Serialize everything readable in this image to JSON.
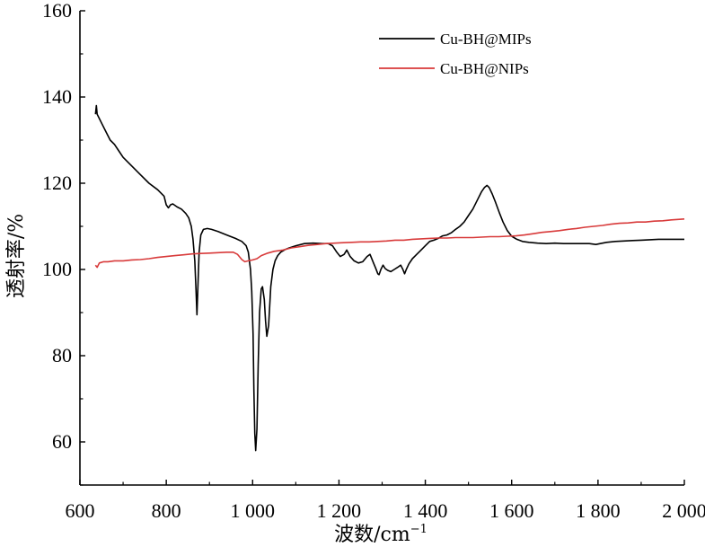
{
  "chart_data": {
    "type": "line",
    "title": "",
    "xlabel": "波数/cm",
    "xlabel_sup": "−1",
    "ylabel": "透射率/%",
    "xlim": [
      600,
      2000
    ],
    "ylim": [
      50,
      160
    ],
    "x_ticks": [
      600,
      800,
      1000,
      1200,
      1400,
      1600,
      1800,
      2000
    ],
    "x_tick_labels": [
      "600",
      "800",
      "1 000",
      "1 200",
      "1 400",
      "1 600",
      "1 800",
      "2 000"
    ],
    "y_ticks": [
      60,
      80,
      100,
      120,
      140,
      160
    ],
    "y_tick_labels": [
      "60",
      "80",
      "100",
      "120",
      "140",
      "160"
    ],
    "legend_position": "top-right",
    "grid": false,
    "series": [
      {
        "name": "Cu-BH@MIPs",
        "color": "#000000",
        "points": [
          [
            636,
            136
          ],
          [
            638,
            138
          ],
          [
            640,
            136
          ],
          [
            645,
            135
          ],
          [
            650,
            134
          ],
          [
            660,
            132
          ],
          [
            670,
            130
          ],
          [
            680,
            129
          ],
          [
            690,
            127.5
          ],
          [
            700,
            126
          ],
          [
            720,
            124
          ],
          [
            740,
            122
          ],
          [
            760,
            120
          ],
          [
            780,
            118.5
          ],
          [
            795,
            117
          ],
          [
            800,
            115
          ],
          [
            805,
            114.3
          ],
          [
            810,
            115
          ],
          [
            815,
            115.2
          ],
          [
            825,
            114.5
          ],
          [
            835,
            114
          ],
          [
            845,
            113
          ],
          [
            852,
            112
          ],
          [
            858,
            110
          ],
          [
            862,
            107
          ],
          [
            866,
            102
          ],
          [
            869,
            95
          ],
          [
            871,
            89.5
          ],
          [
            873,
            95
          ],
          [
            876,
            104
          ],
          [
            880,
            108
          ],
          [
            886,
            109.3
          ],
          [
            895,
            109.5
          ],
          [
            905,
            109.3
          ],
          [
            920,
            108.8
          ],
          [
            940,
            108
          ],
          [
            960,
            107.2
          ],
          [
            975,
            106.5
          ],
          [
            985,
            105.5
          ],
          [
            990,
            104
          ],
          [
            995,
            100
          ],
          [
            998,
            95
          ],
          [
            1001,
            85
          ],
          [
            1003,
            72
          ],
          [
            1005,
            62
          ],
          [
            1007,
            58
          ],
          [
            1010,
            63
          ],
          [
            1013,
            78
          ],
          [
            1016,
            90
          ],
          [
            1020,
            95.5
          ],
          [
            1023,
            96
          ],
          [
            1027,
            93
          ],
          [
            1030,
            88
          ],
          [
            1033,
            84.5
          ],
          [
            1037,
            87
          ],
          [
            1042,
            96
          ],
          [
            1047,
            100
          ],
          [
            1052,
            102
          ],
          [
            1058,
            103.2
          ],
          [
            1065,
            104
          ],
          [
            1075,
            104.6
          ],
          [
            1085,
            105
          ],
          [
            1100,
            105.5
          ],
          [
            1120,
            106
          ],
          [
            1140,
            106.1
          ],
          [
            1160,
            106
          ],
          [
            1175,
            106
          ],
          [
            1185,
            105.5
          ],
          [
            1195,
            104
          ],
          [
            1203,
            103
          ],
          [
            1212,
            103.5
          ],
          [
            1218,
            104.5
          ],
          [
            1226,
            103
          ],
          [
            1235,
            102
          ],
          [
            1245,
            101.5
          ],
          [
            1255,
            101.8
          ],
          [
            1265,
            103
          ],
          [
            1272,
            103.5
          ],
          [
            1280,
            101.5
          ],
          [
            1285,
            100.3
          ],
          [
            1290,
            99
          ],
          [
            1293,
            98.8
          ],
          [
            1297,
            100
          ],
          [
            1302,
            101
          ],
          [
            1307,
            100.2
          ],
          [
            1313,
            99.8
          ],
          [
            1320,
            99.5
          ],
          [
            1328,
            100
          ],
          [
            1336,
            100.5
          ],
          [
            1343,
            101
          ],
          [
            1348,
            100
          ],
          [
            1352,
            99
          ],
          [
            1356,
            100
          ],
          [
            1362,
            101.3
          ],
          [
            1370,
            102.5
          ],
          [
            1380,
            103.5
          ],
          [
            1390,
            104.5
          ],
          [
            1400,
            105.5
          ],
          [
            1410,
            106.5
          ],
          [
            1420,
            106.8
          ],
          [
            1430,
            107.2
          ],
          [
            1440,
            107.8
          ],
          [
            1450,
            108
          ],
          [
            1460,
            108.5
          ],
          [
            1470,
            109.3
          ],
          [
            1480,
            110
          ],
          [
            1490,
            111
          ],
          [
            1500,
            112.5
          ],
          [
            1510,
            114
          ],
          [
            1520,
            116
          ],
          [
            1530,
            118
          ],
          [
            1537,
            119
          ],
          [
            1543,
            119.5
          ],
          [
            1548,
            119
          ],
          [
            1555,
            117.5
          ],
          [
            1563,
            115.5
          ],
          [
            1572,
            113
          ],
          [
            1580,
            111
          ],
          [
            1590,
            109
          ],
          [
            1600,
            107.7
          ],
          [
            1612,
            107
          ],
          [
            1625,
            106.5
          ],
          [
            1640,
            106.3
          ],
          [
            1660,
            106.1
          ],
          [
            1680,
            106
          ],
          [
            1700,
            106.1
          ],
          [
            1720,
            106
          ],
          [
            1740,
            106
          ],
          [
            1760,
            106
          ],
          [
            1780,
            106
          ],
          [
            1795,
            105.8
          ],
          [
            1805,
            106
          ],
          [
            1820,
            106.3
          ],
          [
            1840,
            106.5
          ],
          [
            1860,
            106.6
          ],
          [
            1880,
            106.7
          ],
          [
            1900,
            106.8
          ],
          [
            1920,
            106.9
          ],
          [
            1940,
            107
          ],
          [
            1960,
            107
          ],
          [
            1980,
            107
          ],
          [
            2000,
            107
          ]
        ]
      },
      {
        "name": "Cu-BH@NIPs",
        "color": "#d83a3a",
        "points": [
          [
            636,
            101
          ],
          [
            640,
            100.5
          ],
          [
            645,
            101.5
          ],
          [
            655,
            101.8
          ],
          [
            665,
            101.8
          ],
          [
            680,
            102
          ],
          [
            700,
            102
          ],
          [
            720,
            102.2
          ],
          [
            740,
            102.3
          ],
          [
            760,
            102.5
          ],
          [
            780,
            102.8
          ],
          [
            800,
            103
          ],
          [
            820,
            103.2
          ],
          [
            840,
            103.4
          ],
          [
            860,
            103.6
          ],
          [
            880,
            103.7
          ],
          [
            900,
            103.8
          ],
          [
            920,
            103.9
          ],
          [
            940,
            104
          ],
          [
            955,
            104
          ],
          [
            965,
            103.5
          ],
          [
            975,
            102.3
          ],
          [
            982,
            101.8
          ],
          [
            990,
            102
          ],
          [
            1000,
            102.2
          ],
          [
            1010,
            102.5
          ],
          [
            1020,
            103.2
          ],
          [
            1035,
            103.8
          ],
          [
            1050,
            104.2
          ],
          [
            1070,
            104.5
          ],
          [
            1090,
            105
          ],
          [
            1110,
            105.3
          ],
          [
            1130,
            105.6
          ],
          [
            1150,
            105.8
          ],
          [
            1170,
            106
          ],
          [
            1190,
            106.1
          ],
          [
            1210,
            106.2
          ],
          [
            1230,
            106.3
          ],
          [
            1250,
            106.4
          ],
          [
            1270,
            106.4
          ],
          [
            1290,
            106.5
          ],
          [
            1310,
            106.6
          ],
          [
            1330,
            106.8
          ],
          [
            1350,
            106.8
          ],
          [
            1370,
            107
          ],
          [
            1390,
            107.1
          ],
          [
            1410,
            107.2
          ],
          [
            1430,
            107.3
          ],
          [
            1450,
            107.3
          ],
          [
            1470,
            107.4
          ],
          [
            1490,
            107.4
          ],
          [
            1510,
            107.4
          ],
          [
            1530,
            107.5
          ],
          [
            1550,
            107.6
          ],
          [
            1570,
            107.6
          ],
          [
            1590,
            107.7
          ],
          [
            1610,
            107.8
          ],
          [
            1630,
            108
          ],
          [
            1650,
            108.3
          ],
          [
            1670,
            108.6
          ],
          [
            1690,
            108.8
          ],
          [
            1710,
            109
          ],
          [
            1730,
            109.3
          ],
          [
            1750,
            109.5
          ],
          [
            1770,
            109.8
          ],
          [
            1790,
            110
          ],
          [
            1810,
            110.2
          ],
          [
            1830,
            110.5
          ],
          [
            1850,
            110.7
          ],
          [
            1870,
            110.8
          ],
          [
            1890,
            111
          ],
          [
            1910,
            111
          ],
          [
            1930,
            111.2
          ],
          [
            1950,
            111.3
          ],
          [
            1970,
            111.5
          ],
          [
            1985,
            111.6
          ],
          [
            2000,
            111.7
          ]
        ]
      }
    ]
  }
}
